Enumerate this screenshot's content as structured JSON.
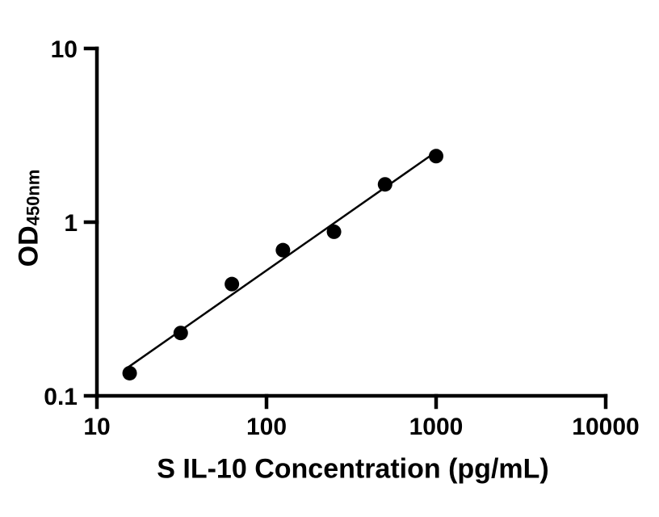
{
  "labels": {
    "y_main": "OD",
    "y_sub": "450nm",
    "x_title": "S IL-10 Concentration (pg/mL)"
  },
  "chart_data": {
    "type": "scatter",
    "x": [
      15.6,
      31.2,
      62.5,
      125,
      250,
      500,
      1000
    ],
    "y": [
      0.135,
      0.23,
      0.44,
      0.69,
      0.88,
      1.65,
      2.4
    ],
    "xlabel": "S IL-10 Concentration (pg/mL)",
    "ylabel": "OD450nm",
    "xscale": "log",
    "yscale": "log",
    "xlim": [
      10,
      10000
    ],
    "ylim": [
      0.1,
      10
    ],
    "x_ticks": [
      "10",
      "100",
      "1000",
      "10000"
    ],
    "y_ticks": [
      "0.1",
      "1",
      "10"
    ],
    "grid": false,
    "legend": false,
    "trendline": true,
    "marker": "circle",
    "marker_color": "#000000",
    "line_color": "#000000",
    "axis_color": "#000000",
    "background": "#ffffff"
  }
}
